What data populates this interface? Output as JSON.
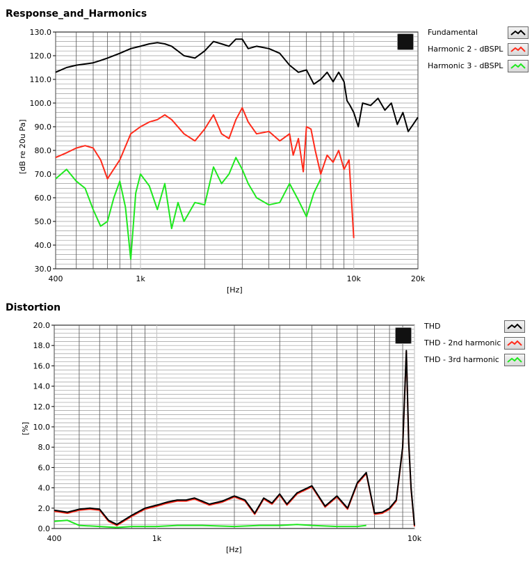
{
  "chart_data": [
    {
      "type": "line",
      "title": "Response_and_Harmonics",
      "ylabel": "[dB re 20u Pa]",
      "xlabel": "[Hz]",
      "xscale": "log",
      "xlim": [
        400,
        20000
      ],
      "ylim": [
        30,
        130
      ],
      "yticks": [
        "130.0",
        "120.0",
        "110.0",
        "100.0",
        "90.0",
        "80.0",
        "70.0",
        "60.0",
        "50.0",
        "40.0",
        "30.0"
      ],
      "ytick_values": [
        130,
        120,
        110,
        100,
        90,
        80,
        70,
        60,
        50,
        40,
        30
      ],
      "xticks": [
        "400",
        "1k",
        "10k",
        "20k"
      ],
      "xtick_values": [
        400,
        1000,
        10000,
        20000
      ],
      "grid": true,
      "legend_position": "right",
      "series": [
        {
          "name": "Fundamental",
          "color": "#000000",
          "x": [
            400,
            450,
            500,
            550,
            600,
            650,
            700,
            800,
            900,
            1000,
            1100,
            1200,
            1300,
            1400,
            1600,
            1800,
            2000,
            2200,
            2400,
            2600,
            2800,
            3000,
            3200,
            3500,
            4000,
            4500,
            5000,
            5500,
            6000,
            6500,
            7000,
            7500,
            8000,
            8500,
            9000,
            9300,
            9600,
            10000,
            10500,
            11000,
            12000,
            13000,
            14000,
            15000,
            16000,
            17000,
            18000,
            19000,
            20000
          ],
          "y": [
            113,
            115,
            116,
            116.5,
            117,
            118,
            119,
            121,
            123,
            124,
            125,
            125.5,
            125,
            124,
            120,
            119,
            122,
            126,
            125,
            124,
            127,
            127,
            123,
            124,
            123,
            121,
            116,
            113,
            114,
            108,
            110,
            113,
            109,
            113,
            109,
            101,
            99,
            96,
            90,
            100,
            99,
            102,
            97,
            100,
            91,
            96,
            88,
            91,
            94
          ]
        },
        {
          "name": "Harmonic 2 - dBSPL",
          "color": "#ff2a1a",
          "x": [
            400,
            450,
            500,
            550,
            600,
            650,
            700,
            800,
            900,
            1000,
            1100,
            1200,
            1300,
            1400,
            1600,
            1800,
            2000,
            2200,
            2400,
            2600,
            2800,
            3000,
            3200,
            3500,
            4000,
            4500,
            5000,
            5200,
            5500,
            5800,
            6000,
            6300,
            6600,
            7000,
            7500,
            8000,
            8500,
            9000,
            9500,
            10000
          ],
          "y": [
            77,
            79,
            81,
            82,
            81,
            76,
            68,
            76,
            87,
            90,
            92,
            93,
            95,
            93,
            87,
            84,
            89,
            95,
            87,
            85,
            93,
            98,
            92,
            87,
            88,
            84,
            87,
            78,
            85,
            71,
            90,
            89,
            80,
            70,
            78,
            75,
            80,
            72,
            76,
            43
          ]
        },
        {
          "name": "Harmonic 3 - dBSPL",
          "color": "#1ee81e",
          "x": [
            400,
            450,
            500,
            550,
            600,
            650,
            700,
            750,
            800,
            850,
            900,
            950,
            1000,
            1100,
            1200,
            1300,
            1400,
            1500,
            1600,
            1800,
            2000,
            2200,
            2400,
            2600,
            2800,
            3000,
            3200,
            3500,
            4000,
            4500,
            5000,
            5500,
            6000,
            6500,
            7000
          ],
          "y": [
            68,
            72,
            67,
            64,
            55,
            48,
            50,
            60,
            67,
            56,
            34,
            62,
            70,
            65,
            55,
            66,
            47,
            58,
            50,
            58,
            57,
            73,
            66,
            70,
            77,
            72,
            66,
            60,
            57,
            58,
            66,
            59,
            52,
            62,
            68
          ]
        }
      ]
    },
    {
      "type": "line",
      "title": "Distortion",
      "ylabel": "[%]",
      "xlabel": "[Hz]",
      "xscale": "log",
      "xlim": [
        400,
        10000
      ],
      "ylim": [
        0,
        20
      ],
      "yticks": [
        "20.0",
        "18.0",
        "16.0",
        "14.0",
        "12.0",
        "10.0",
        "8.0",
        "6.0",
        "4.0",
        "2.0",
        "0.0"
      ],
      "ytick_values": [
        20,
        18,
        16,
        14,
        12,
        10,
        8,
        6,
        4,
        2,
        0
      ],
      "xticks": [
        "400",
        "1k",
        "10k"
      ],
      "xtick_values": [
        400,
        1000,
        10000
      ],
      "grid": true,
      "legend_position": "right",
      "series": [
        {
          "name": "THD",
          "color": "#000000",
          "x": [
            400,
            450,
            500,
            550,
            600,
            650,
            700,
            800,
            900,
            1000,
            1100,
            1200,
            1300,
            1400,
            1600,
            1800,
            2000,
            2200,
            2400,
            2600,
            2800,
            3000,
            3200,
            3500,
            4000,
            4500,
            5000,
            5500,
            6000,
            6500,
            7000,
            7500,
            8000,
            8500,
            9000,
            9300,
            9500,
            9700,
            10000
          ],
          "y": [
            1.8,
            1.6,
            1.9,
            2.0,
            1.9,
            0.8,
            0.4,
            1.3,
            2.0,
            2.3,
            2.6,
            2.8,
            2.8,
            3.0,
            2.4,
            2.7,
            3.2,
            2.8,
            1.5,
            3.0,
            2.5,
            3.4,
            2.4,
            3.5,
            4.2,
            2.2,
            3.2,
            2.0,
            4.5,
            5.5,
            1.5,
            1.6,
            2.0,
            2.8,
            8.0,
            17.5,
            8.5,
            4.0,
            0.3
          ]
        },
        {
          "name": "THD - 2nd harmonic",
          "color": "#ff2a1a",
          "x": [
            400,
            450,
            500,
            550,
            600,
            650,
            700,
            800,
            900,
            1000,
            1100,
            1200,
            1300,
            1400,
            1600,
            1800,
            2000,
            2200,
            2400,
            2600,
            2800,
            3000,
            3200,
            3500,
            4000,
            4500,
            5000,
            5500,
            6000,
            6500,
            7000,
            7500,
            8000,
            8500,
            9000,
            9300,
            9500,
            9700,
            10000
          ],
          "y": [
            1.7,
            1.5,
            1.8,
            1.9,
            1.8,
            0.7,
            0.3,
            1.2,
            1.9,
            2.2,
            2.5,
            2.7,
            2.7,
            2.9,
            2.3,
            2.6,
            3.1,
            2.7,
            1.4,
            2.9,
            2.4,
            3.3,
            2.3,
            3.4,
            4.1,
            2.1,
            3.1,
            1.9,
            4.4,
            5.4,
            1.4,
            1.5,
            1.9,
            2.7,
            7.9,
            17.4,
            8.4,
            3.9,
            0.2
          ]
        },
        {
          "name": "THD - 3rd harmonic",
          "color": "#1ee81e",
          "x": [
            400,
            450,
            500,
            600,
            700,
            800,
            1000,
            1200,
            1500,
            2000,
            2500,
            3000,
            3500,
            4000,
            5000,
            6000,
            6500
          ],
          "y": [
            0.7,
            0.8,
            0.3,
            0.2,
            0.1,
            0.2,
            0.2,
            0.3,
            0.3,
            0.2,
            0.3,
            0.3,
            0.4,
            0.3,
            0.2,
            0.2,
            0.3
          ]
        }
      ]
    }
  ],
  "labels": {
    "title1": "Response_and_Harmonics",
    "title2": "Distortion",
    "ylabel1": "[dB re 20u Pa]",
    "ylabel2": "[%]",
    "xlabel": "[Hz]"
  },
  "legend1": [
    "Fundamental",
    "Harmonic 2 - dBSPL",
    "Harmonic 3 - dBSPL"
  ],
  "legend2": [
    "THD",
    "THD - 2nd harmonic",
    "THD - 3rd harmonic"
  ],
  "icons": {
    "graph_palette": "graph-palette-icon"
  }
}
